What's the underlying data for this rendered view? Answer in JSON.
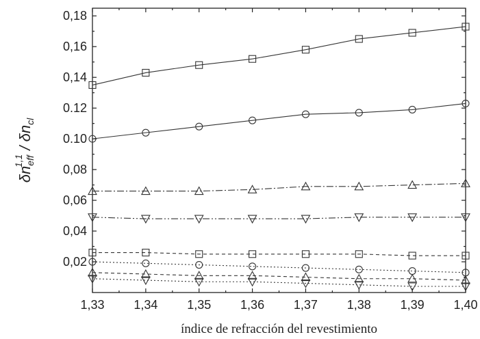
{
  "chart_data": {
    "type": "line",
    "xlabel": "índice de refracción del revestimiento",
    "ylabel": "δn_eff^{1,1} / δn_cl",
    "ylabel_parts": {
      "main": "δn",
      "sub": "eff",
      "sup": "1,1",
      "sep": " / δn",
      "sub2": "cl"
    },
    "x": [
      1.33,
      1.34,
      1.35,
      1.36,
      1.37,
      1.38,
      1.39,
      1.4
    ],
    "xlim": [
      1.33,
      1.4
    ],
    "ylim": [
      0.0,
      0.185
    ],
    "xticks": [
      "1,33",
      "1,34",
      "1,35",
      "1,36",
      "1,37",
      "1,38",
      "1,39",
      "1,40"
    ],
    "yticks": [
      {
        "value": 0.02,
        "label": "0,02"
      },
      {
        "value": 0.04,
        "label": "0,04"
      },
      {
        "value": 0.06,
        "label": "0,06"
      },
      {
        "value": 0.08,
        "label": "0,08"
      },
      {
        "value": 0.1,
        "label": "0.10"
      },
      {
        "value": 0.12,
        "label": "0.12"
      },
      {
        "value": 0.14,
        "label": "0,14"
      },
      {
        "value": 0.16,
        "label": "0,16"
      },
      {
        "value": 0.18,
        "label": "0,18"
      }
    ],
    "grid": false,
    "series": [
      {
        "marker": "square",
        "dash": "",
        "values": [
          0.135,
          0.143,
          0.148,
          0.152,
          0.158,
          0.165,
          0.169,
          0.173
        ]
      },
      {
        "marker": "circle",
        "dash": "",
        "values": [
          0.1,
          0.104,
          0.108,
          0.112,
          0.116,
          0.117,
          0.119,
          0.123
        ]
      },
      {
        "marker": "triangle-up",
        "dash": "10,3,2,3",
        "values": [
          0.066,
          0.066,
          0.066,
          0.067,
          0.069,
          0.069,
          0.07,
          0.071
        ]
      },
      {
        "marker": "triangle-down",
        "dash": "10,3,2,3,2,3",
        "values": [
          0.049,
          0.048,
          0.048,
          0.048,
          0.048,
          0.049,
          0.049,
          0.049
        ]
      },
      {
        "marker": "square",
        "dash": "5,4",
        "values": [
          0.026,
          0.026,
          0.025,
          0.025,
          0.025,
          0.025,
          0.024,
          0.024
        ]
      },
      {
        "marker": "circle",
        "dash": "2,3",
        "values": [
          0.02,
          0.019,
          0.018,
          0.017,
          0.016,
          0.015,
          0.014,
          0.013
        ]
      },
      {
        "marker": "triangle-up",
        "dash": "5,4",
        "values": [
          0.013,
          0.012,
          0.011,
          0.011,
          0.01,
          0.009,
          0.009,
          0.008
        ]
      },
      {
        "marker": "triangle-down",
        "dash": "2,3",
        "values": [
          0.009,
          0.008,
          0.007,
          0.007,
          0.006,
          0.005,
          0.004,
          0.004
        ]
      }
    ]
  }
}
